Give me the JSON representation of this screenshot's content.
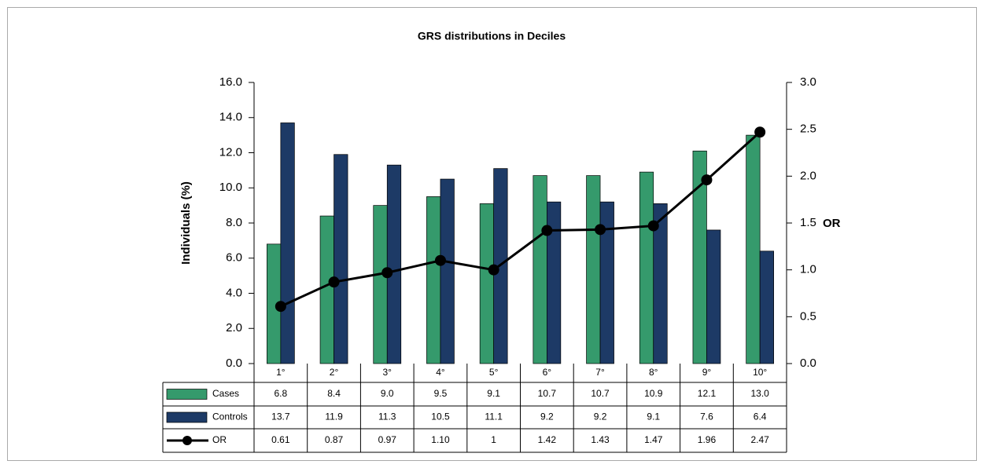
{
  "chart_data": {
    "type": "bar",
    "title": "GRS distributions in Deciles",
    "y_label": "Individuals (%)",
    "y2_label": "OR",
    "categories": [
      "1°",
      "2°",
      "3°",
      "4°",
      "5°",
      "6°",
      "7°",
      "8°",
      "9°",
      "10°"
    ],
    "series": [
      {
        "name": "Cases",
        "type": "bar",
        "color": "#359a6c",
        "values": [
          6.8,
          8.4,
          9.0,
          9.5,
          9.1,
          10.7,
          10.7,
          10.9,
          12.1,
          13.0
        ],
        "value_labels": [
          "6.8",
          "8.4",
          "9.0",
          "9.5",
          "9.1",
          "10.7",
          "10.7",
          "10.9",
          "12.1",
          "13.0"
        ]
      },
      {
        "name": "Controls",
        "type": "bar",
        "color": "#1d3a66",
        "values": [
          13.7,
          11.9,
          11.3,
          10.5,
          11.1,
          9.2,
          9.2,
          9.1,
          7.6,
          6.4
        ],
        "value_labels": [
          "13.7",
          "11.9",
          "11.3",
          "10.5",
          "11.1",
          "9.2",
          "9.2",
          "9.1",
          "7.6",
          "6.4"
        ]
      },
      {
        "name": "OR",
        "type": "line",
        "axis": "y2",
        "color": "#000000",
        "values": [
          0.61,
          0.87,
          0.97,
          1.1,
          1,
          1.42,
          1.43,
          1.47,
          1.96,
          2.47
        ],
        "value_labels": [
          "0.61",
          "0.87",
          "0.97",
          "1.10",
          "1",
          "1.42",
          "1.43",
          "1.47",
          "1.96",
          "2.47"
        ]
      }
    ],
    "ylim": [
      0,
      16
    ],
    "yticks": [
      {
        "value": 0,
        "label": "0.0"
      },
      {
        "value": 2,
        "label": "2.0"
      },
      {
        "value": 4,
        "label": "4.0"
      },
      {
        "value": 6,
        "label": "6.0"
      },
      {
        "value": 8,
        "label": "8.0"
      },
      {
        "value": 10,
        "label": "10.0"
      },
      {
        "value": 12,
        "label": "12.0"
      },
      {
        "value": 14,
        "label": "14.0"
      },
      {
        "value": 16,
        "label": "16.0"
      }
    ],
    "y2lim": [
      0,
      3
    ],
    "y2ticks": [
      {
        "value": 0,
        "label": "0.0"
      },
      0.5,
      {
        "value": 1,
        "label": "1.0"
      },
      1.5,
      {
        "value": 2,
        "label": "2.0"
      },
      2.5,
      {
        "value": 3,
        "label": "3.0"
      }
    ],
    "grid": false
  }
}
